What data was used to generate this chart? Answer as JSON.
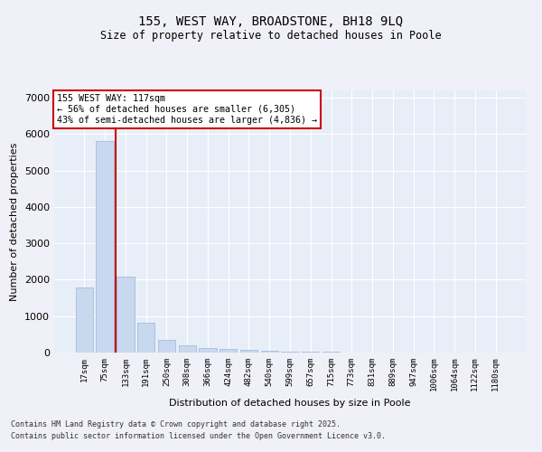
{
  "title1": "155, WEST WAY, BROADSTONE, BH18 9LQ",
  "title2": "Size of property relative to detached houses in Poole",
  "xlabel": "Distribution of detached houses by size in Poole",
  "ylabel": "Number of detached properties",
  "categories": [
    "17sqm",
    "75sqm",
    "133sqm",
    "191sqm",
    "250sqm",
    "308sqm",
    "366sqm",
    "424sqm",
    "482sqm",
    "540sqm",
    "599sqm",
    "657sqm",
    "715sqm",
    "773sqm",
    "831sqm",
    "889sqm",
    "947sqm",
    "1006sqm",
    "1064sqm",
    "1122sqm",
    "1180sqm"
  ],
  "values": [
    1780,
    5820,
    2080,
    820,
    360,
    200,
    120,
    90,
    80,
    50,
    30,
    20,
    15,
    10,
    8,
    6,
    5,
    4,
    3,
    2,
    2
  ],
  "bar_color": "#c8d8ee",
  "bar_edge_color": "#9ab5d8",
  "vline_color": "#cc0000",
  "vline_pos": 1.5,
  "annotation_title": "155 WEST WAY: 117sqm",
  "annotation_line1": "← 56% of detached houses are smaller (6,305)",
  "annotation_line2": "43% of semi-detached houses are larger (4,836) →",
  "annotation_box_color": "#cc0000",
  "ylim": [
    0,
    7200
  ],
  "yticks": [
    0,
    1000,
    2000,
    3000,
    4000,
    5000,
    6000,
    7000
  ],
  "background_color": "#e8eef8",
  "grid_color": "#ffffff",
  "fig_bg": "#f0f0f8",
  "footer1": "Contains HM Land Registry data © Crown copyright and database right 2025.",
  "footer2": "Contains public sector information licensed under the Open Government Licence v3.0."
}
